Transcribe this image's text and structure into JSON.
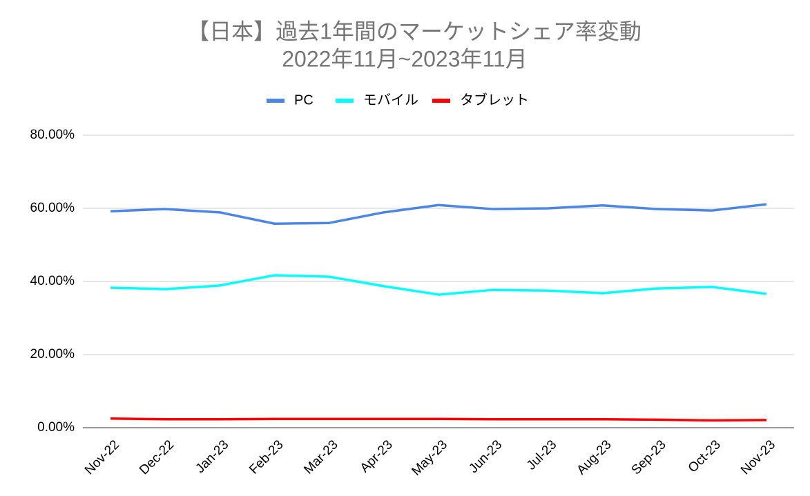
{
  "chart_data": {
    "type": "line",
    "title": "【日本】過去1年間のマーケットシェア率変動",
    "subtitle": "2022年11月~2023年11月",
    "categories": [
      "Nov-22",
      "Dec-22",
      "Jan-23",
      "Feb-23",
      "Mar-23",
      "Apr-23",
      "May-23",
      "Jun-23",
      "Jul-23",
      "Aug-23",
      "Sep-23",
      "Oct-23",
      "Nov-23"
    ],
    "series": [
      {
        "name": "PC",
        "color": "#4a86e8",
        "values": [
          59.2,
          59.8,
          58.9,
          55.8,
          56.0,
          58.9,
          60.9,
          59.8,
          60.0,
          60.8,
          59.8,
          59.4,
          61.1
        ]
      },
      {
        "name": "モバイル",
        "color": "#00ffff",
        "values": [
          38.3,
          37.9,
          38.9,
          41.7,
          41.3,
          38.7,
          36.4,
          37.7,
          37.5,
          36.8,
          38.1,
          38.5,
          36.6
        ]
      },
      {
        "name": "タブレット",
        "color": "#ff0000",
        "values": [
          2.5,
          2.3,
          2.3,
          2.4,
          2.4,
          2.4,
          2.4,
          2.3,
          2.3,
          2.3,
          2.2,
          2.0,
          2.1
        ]
      }
    ],
    "ylim": [
      0,
      80
    ],
    "yticks": [
      {
        "value": 0,
        "label": "0.00%"
      },
      {
        "value": 20,
        "label": "20.00%"
      },
      {
        "value": 40,
        "label": "40.00%"
      },
      {
        "value": 60,
        "label": "60.00%"
      },
      {
        "value": 80,
        "label": "80.00%"
      }
    ],
    "grid": true,
    "legend": "top"
  }
}
